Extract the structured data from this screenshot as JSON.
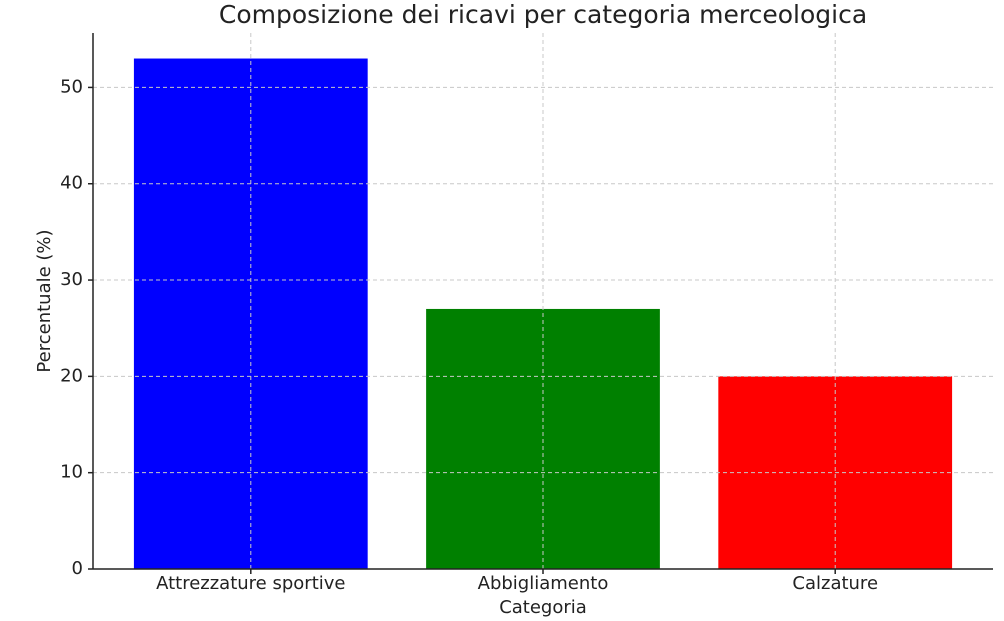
{
  "chart_data": {
    "type": "bar",
    "title": "Composizione dei ricavi per categoria merceologica",
    "x_label": "Categoria",
    "y_label": "Percentuale (%)",
    "categories": [
      "Attrezzature sportive",
      "Abbigliamento",
      "Calzature"
    ],
    "values": [
      53,
      27,
      20
    ],
    "colors": [
      "#0000ff",
      "#008000",
      "#ff0000"
    ],
    "ylim": [
      0,
      55.65
    ],
    "yticks": [
      0,
      10,
      20,
      30,
      40,
      50
    ],
    "grid": true
  }
}
